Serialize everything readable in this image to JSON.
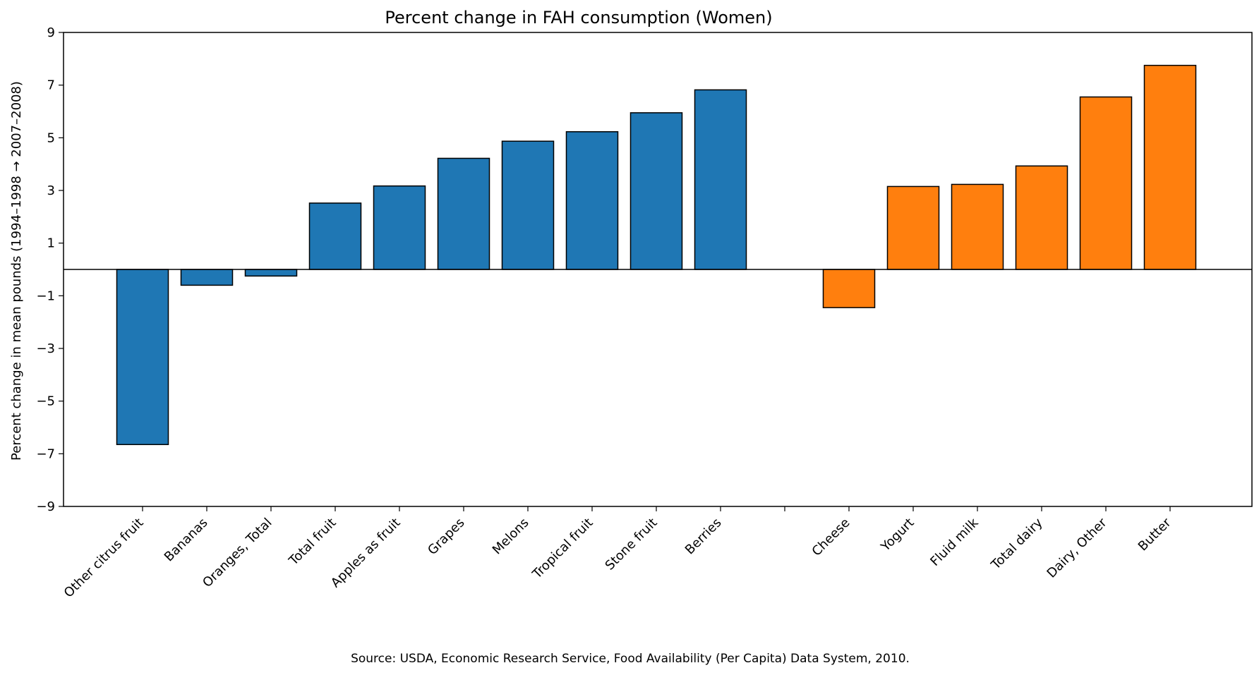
{
  "chart_data": {
    "type": "bar",
    "title": "Percent change in FAH consumption (Women)",
    "xlabel": "",
    "ylabel": "Percent change in mean pounds (1994–1998 → 2007–2008)",
    "ylim": [
      -9,
      9
    ],
    "yticks": [
      -9,
      -7,
      -5,
      -3,
      -1,
      1,
      3,
      5,
      7,
      9
    ],
    "yticklabels": [
      "−9",
      "−7",
      "−5",
      "−3",
      "−1",
      "1",
      "3",
      "5",
      "7",
      "9"
    ],
    "categories": [
      "Other citrus fruit",
      "Bananas",
      "Oranges, Total",
      "Total fruit",
      "Apples as fruit",
      "Grapes",
      "Melons",
      "Tropical fruit",
      "Stone fruit",
      "Berries",
      "",
      "Cheese",
      "Yogurt",
      "Fluid milk",
      "Total dairy",
      "Dairy, Other",
      "Butter"
    ],
    "values": [
      -6.65,
      -0.6,
      -0.25,
      2.52,
      3.17,
      4.22,
      4.87,
      5.23,
      5.95,
      6.82,
      null,
      -1.45,
      3.15,
      3.23,
      3.93,
      6.55,
      7.75
    ],
    "group": [
      "fruit",
      "fruit",
      "fruit",
      "fruit",
      "fruit",
      "fruit",
      "fruit",
      "fruit",
      "fruit",
      "fruit",
      null,
      "dairy",
      "dairy",
      "dairy",
      "dairy",
      "dairy",
      "dairy"
    ],
    "colors": {
      "fruit": "#1f77b4",
      "dairy": "#ff7f0e"
    },
    "zero_line": true,
    "grid": false,
    "legend": "none",
    "source": "Source: USDA, Economic Research Service, Food Availability (Per Capita) Data System, 2010."
  }
}
